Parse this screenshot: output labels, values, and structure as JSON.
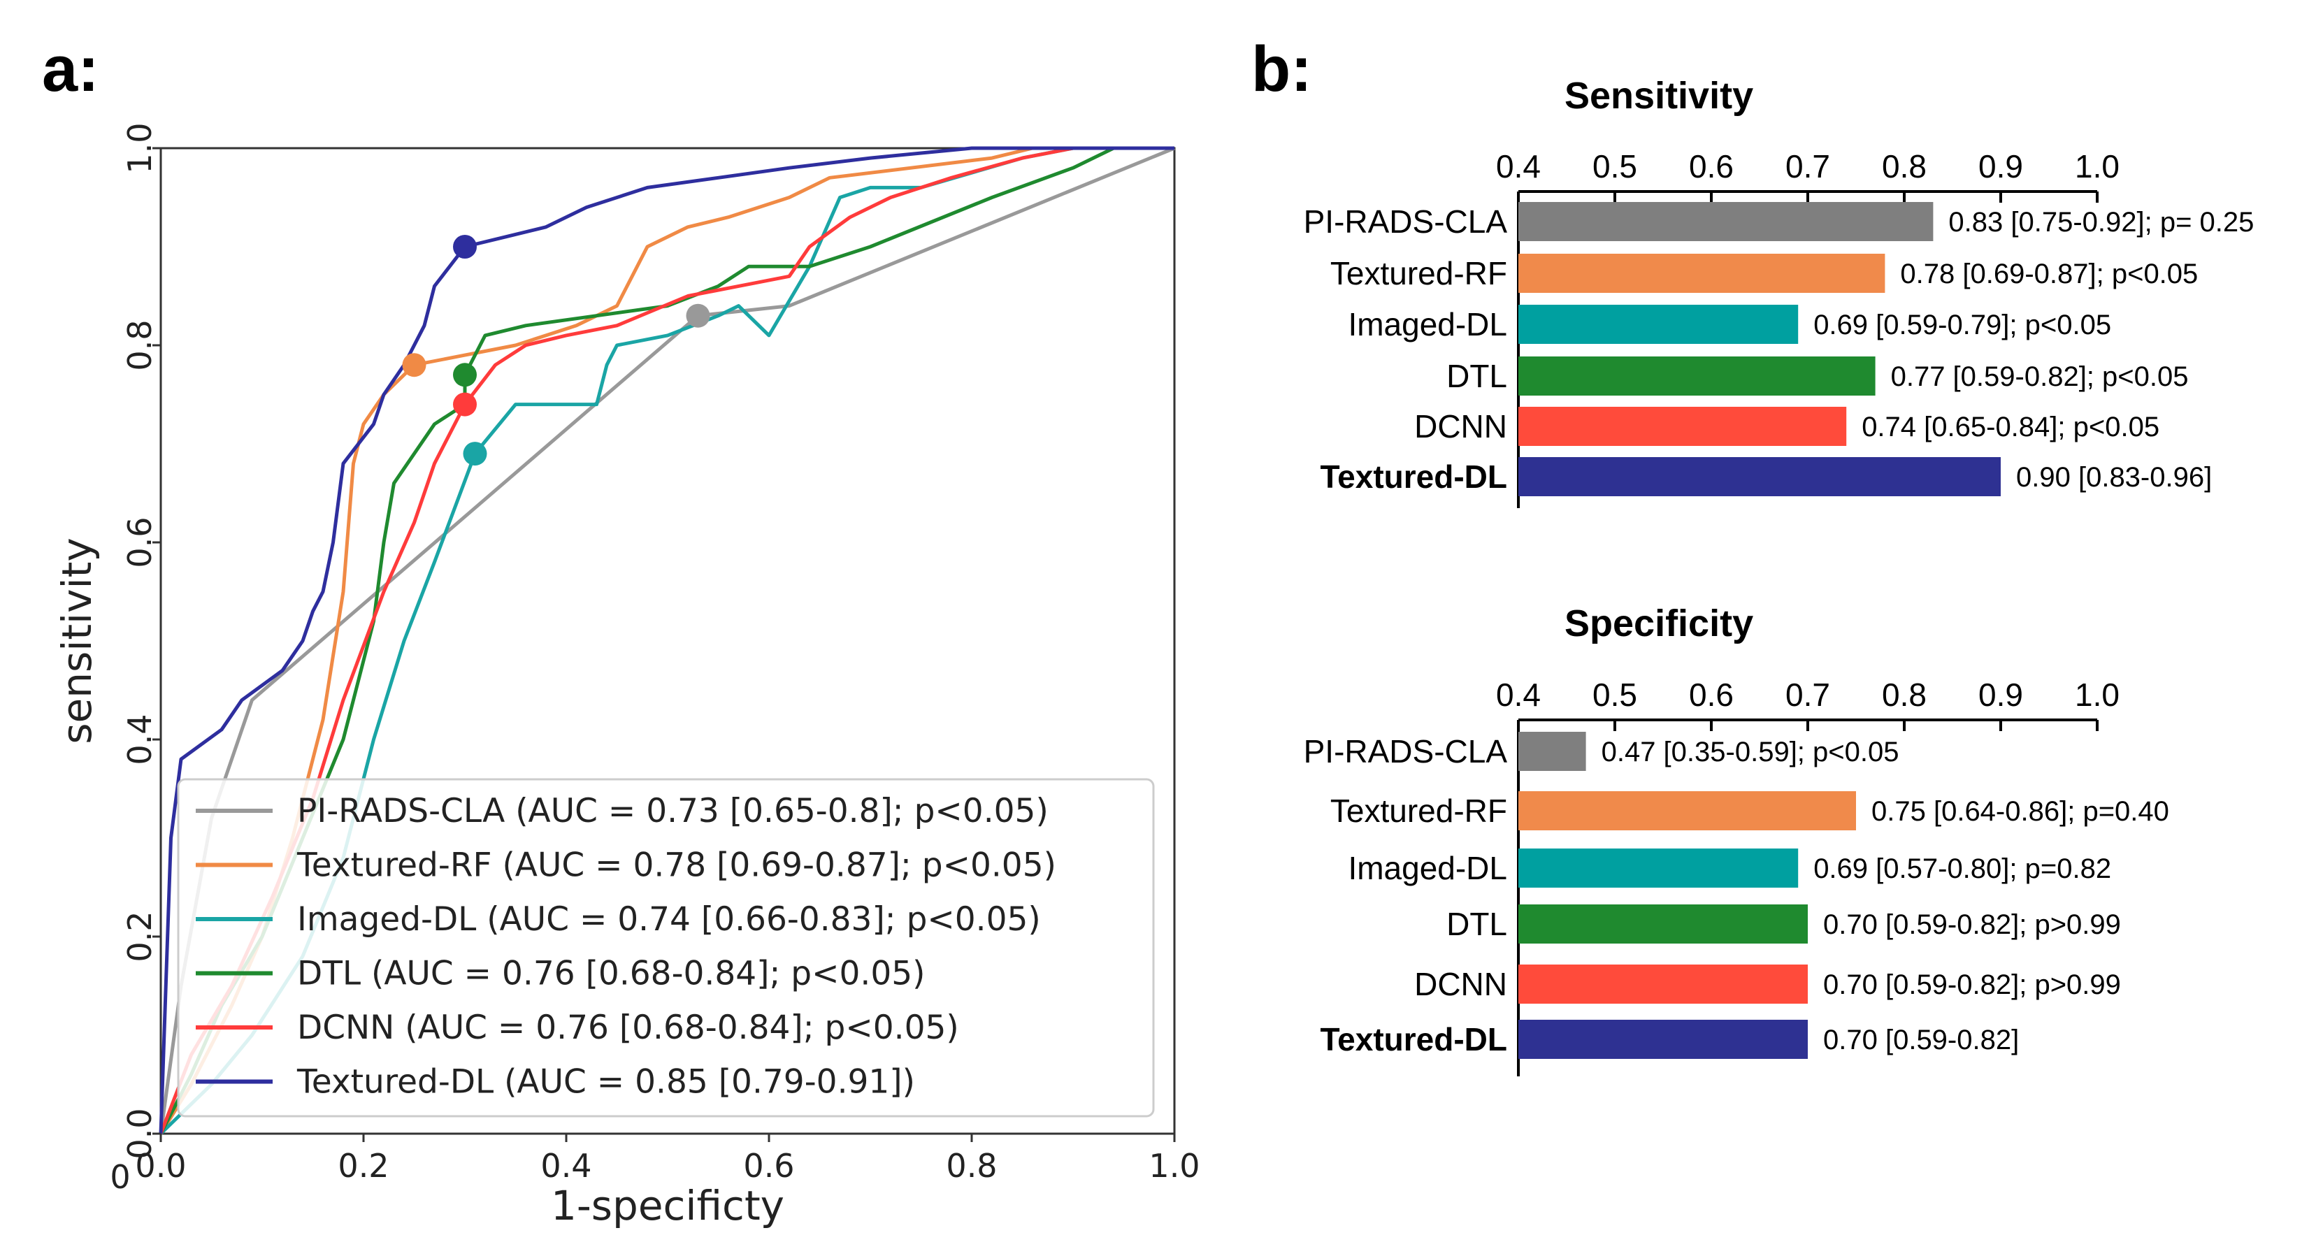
{
  "panels": {
    "a_label": "a:",
    "b_label": "b:"
  },
  "chart_data": [
    {
      "type": "line",
      "title": "",
      "xlabel": "1-specificty",
      "ylabel": "sensitivity",
      "xlim": [
        0,
        1
      ],
      "ylim": [
        0,
        1
      ],
      "xticks": [
        "0.0",
        "0.2",
        "0.4",
        "0.6",
        "0.8",
        "1.0"
      ],
      "yticks": [
        "0.0",
        "0.2",
        "0.4",
        "0.6",
        "0.8",
        "1.0"
      ],
      "x_origin_tick": "0",
      "legend_position": "lower-right",
      "series": [
        {
          "name": "PI-RADS-CLA",
          "legend": "PI-RADS-CLA (AUC = 0.73 [0.65-0.8]; p<0.05)",
          "color": "#999999",
          "operating_point": [
            0.53,
            0.83
          ],
          "points": [
            [
              0,
              0
            ],
            [
              0.02,
              0.15
            ],
            [
              0.05,
              0.32
            ],
            [
              0.09,
              0.44
            ],
            [
              0.53,
              0.83
            ],
            [
              0.62,
              0.84
            ],
            [
              1,
              1
            ]
          ]
        },
        {
          "name": "Textured-RF",
          "legend": "Textured-RF (AUC = 0.78 [0.69-0.87]; p<0.05)",
          "color": "#f08a45",
          "operating_point": [
            0.25,
            0.78
          ],
          "points": [
            [
              0,
              0
            ],
            [
              0.03,
              0.05
            ],
            [
              0.07,
              0.13
            ],
            [
              0.1,
              0.2
            ],
            [
              0.13,
              0.3
            ],
            [
              0.16,
              0.42
            ],
            [
              0.18,
              0.55
            ],
            [
              0.19,
              0.68
            ],
            [
              0.2,
              0.72
            ],
            [
              0.22,
              0.75
            ],
            [
              0.25,
              0.78
            ],
            [
              0.3,
              0.79
            ],
            [
              0.35,
              0.8
            ],
            [
              0.38,
              0.81
            ],
            [
              0.41,
              0.82
            ],
            [
              0.45,
              0.84
            ],
            [
              0.48,
              0.9
            ],
            [
              0.52,
              0.92
            ],
            [
              0.56,
              0.93
            ],
            [
              0.62,
              0.95
            ],
            [
              0.66,
              0.97
            ],
            [
              0.82,
              0.99
            ],
            [
              0.86,
              1.0
            ],
            [
              1,
              1
            ]
          ]
        },
        {
          "name": "Imaged-DL",
          "legend": "Imaged-DL (AUC = 0.74 [0.66-0.83]; p<0.05)",
          "color": "#1aa5a5",
          "operating_point": [
            0.31,
            0.69
          ],
          "points": [
            [
              0,
              0
            ],
            [
              0.05,
              0.05
            ],
            [
              0.09,
              0.1
            ],
            [
              0.14,
              0.18
            ],
            [
              0.18,
              0.28
            ],
            [
              0.21,
              0.4
            ],
            [
              0.24,
              0.5
            ],
            [
              0.27,
              0.58
            ],
            [
              0.31,
              0.69
            ],
            [
              0.35,
              0.74
            ],
            [
              0.43,
              0.74
            ],
            [
              0.44,
              0.78
            ],
            [
              0.45,
              0.8
            ],
            [
              0.5,
              0.81
            ],
            [
              0.55,
              0.83
            ],
            [
              0.57,
              0.84
            ],
            [
              0.6,
              0.81
            ],
            [
              0.64,
              0.88
            ],
            [
              0.67,
              0.95
            ],
            [
              0.7,
              0.96
            ],
            [
              0.75,
              0.96
            ],
            [
              0.85,
              0.99
            ],
            [
              0.9,
              1.0
            ],
            [
              1,
              1
            ]
          ]
        },
        {
          "name": "DTL",
          "legend": "DTL (AUC = 0.76 [0.68-0.84]; p<0.05)",
          "color": "#1f8a2f",
          "operating_point": [
            0.3,
            0.77
          ],
          "points": [
            [
              0,
              0
            ],
            [
              0.03,
              0.06
            ],
            [
              0.06,
              0.13
            ],
            [
              0.1,
              0.2
            ],
            [
              0.14,
              0.3
            ],
            [
              0.18,
              0.4
            ],
            [
              0.21,
              0.52
            ],
            [
              0.22,
              0.6
            ],
            [
              0.23,
              0.66
            ],
            [
              0.27,
              0.72
            ],
            [
              0.3,
              0.74
            ],
            [
              0.3,
              0.77
            ],
            [
              0.32,
              0.81
            ],
            [
              0.36,
              0.82
            ],
            [
              0.5,
              0.84
            ],
            [
              0.55,
              0.86
            ],
            [
              0.58,
              0.88
            ],
            [
              0.64,
              0.88
            ],
            [
              0.7,
              0.9
            ],
            [
              0.82,
              0.95
            ],
            [
              0.9,
              0.98
            ],
            [
              0.94,
              1.0
            ],
            [
              1,
              1
            ]
          ]
        },
        {
          "name": "DCNN",
          "legend": "DCNN (AUC = 0.76 [0.68-0.84]; p<0.05)",
          "color": "#ff3b3b",
          "operating_point": [
            0.3,
            0.74
          ],
          "points": [
            [
              0,
              0
            ],
            [
              0.03,
              0.08
            ],
            [
              0.07,
              0.15
            ],
            [
              0.11,
              0.24
            ],
            [
              0.15,
              0.34
            ],
            [
              0.18,
              0.44
            ],
            [
              0.22,
              0.55
            ],
            [
              0.25,
              0.62
            ],
            [
              0.27,
              0.68
            ],
            [
              0.3,
              0.74
            ],
            [
              0.33,
              0.78
            ],
            [
              0.36,
              0.8
            ],
            [
              0.4,
              0.81
            ],
            [
              0.45,
              0.82
            ],
            [
              0.52,
              0.85
            ],
            [
              0.57,
              0.86
            ],
            [
              0.62,
              0.87
            ],
            [
              0.64,
              0.9
            ],
            [
              0.68,
              0.93
            ],
            [
              0.72,
              0.95
            ],
            [
              0.78,
              0.97
            ],
            [
              0.85,
              0.99
            ],
            [
              0.9,
              1.0
            ],
            [
              1,
              1
            ]
          ]
        },
        {
          "name": "Textured-DL",
          "legend": "Textured-DL (AUC = 0.85 [0.79-0.91])",
          "color": "#2e2e9e",
          "operating_point": [
            0.3,
            0.9
          ],
          "points": [
            [
              0,
              0
            ],
            [
              0.01,
              0.3
            ],
            [
              0.02,
              0.38
            ],
            [
              0.06,
              0.41
            ],
            [
              0.08,
              0.44
            ],
            [
              0.12,
              0.47
            ],
            [
              0.14,
              0.5
            ],
            [
              0.15,
              0.53
            ],
            [
              0.16,
              0.55
            ],
            [
              0.17,
              0.6
            ],
            [
              0.18,
              0.68
            ],
            [
              0.21,
              0.72
            ],
            [
              0.22,
              0.75
            ],
            [
              0.24,
              0.78
            ],
            [
              0.26,
              0.82
            ],
            [
              0.27,
              0.86
            ],
            [
              0.3,
              0.9
            ],
            [
              0.34,
              0.91
            ],
            [
              0.38,
              0.92
            ],
            [
              0.42,
              0.94
            ],
            [
              0.48,
              0.96
            ],
            [
              0.55,
              0.97
            ],
            [
              0.62,
              0.98
            ],
            [
              0.7,
              0.99
            ],
            [
              0.8,
              1.0
            ],
            [
              1,
              1
            ]
          ]
        }
      ]
    },
    {
      "type": "bar",
      "orientation": "horizontal",
      "title": "Sensitivity",
      "xlim": [
        0.4,
        1.0
      ],
      "xticks": [
        "0.4",
        "0.5",
        "0.6",
        "0.7",
        "0.8",
        "0.9",
        "1.0"
      ],
      "categories": [
        "PI-RADS-CLA",
        "Textured-RF",
        "Imaged-DL",
        "DTL",
        "DCNN",
        "Textured-DL"
      ],
      "values": [
        0.83,
        0.78,
        0.69,
        0.77,
        0.74,
        0.9
      ],
      "colors": [
        "#7f7f7f",
        "#f08a4b",
        "#00a0a0",
        "#1f8a2f",
        "#ff4b3b",
        "#2e3192"
      ],
      "labels": [
        "0.83 [0.75-0.92]; p= 0.25",
        "0.78 [0.69-0.87]; p<0.05",
        "0.69 [0.59-0.79]; p<0.05",
        "0.77 [0.59-0.82]; p<0.05",
        "0.74 [0.65-0.84]; p<0.05",
        "0.90 [0.83-0.96]"
      ],
      "bold_category": "Textured-DL"
    },
    {
      "type": "bar",
      "orientation": "horizontal",
      "title": "Specificity",
      "xlim": [
        0.4,
        1.0
      ],
      "xticks": [
        "0.4",
        "0.5",
        "0.6",
        "0.7",
        "0.8",
        "0.9",
        "1.0"
      ],
      "categories": [
        "PI-RADS-CLA",
        "Textured-RF",
        "Imaged-DL",
        "DTL",
        "DCNN",
        "Textured-DL"
      ],
      "values": [
        0.47,
        0.75,
        0.69,
        0.7,
        0.7,
        0.7
      ],
      "colors": [
        "#7f7f7f",
        "#f08a4b",
        "#00a0a0",
        "#1f8a2f",
        "#ff4b3b",
        "#2e3192"
      ],
      "labels": [
        "0.47 [0.35-0.59]; p<0.05",
        "0.75 [0.64-0.86]; p=0.40",
        "0.69 [0.57-0.80]; p=0.82",
        "0.70 [0.59-0.82]; p>0.99",
        "0.70 [0.59-0.82]; p>0.99",
        "0.70 [0.59-0.82]"
      ],
      "bold_category": "Textured-DL"
    }
  ]
}
